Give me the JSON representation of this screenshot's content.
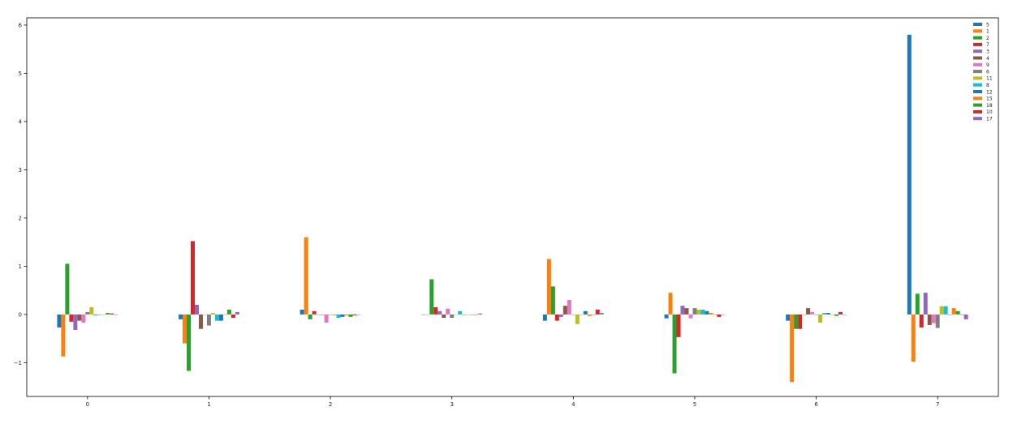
{
  "chart_data": {
    "type": "bar",
    "title": "",
    "xlabel": "",
    "ylabel": "",
    "categories": [
      "0",
      "1",
      "2",
      "3",
      "4",
      "5",
      "6",
      "7"
    ],
    "ylim": [
      -1.7,
      6.15
    ],
    "yticks": [
      -1,
      0,
      1,
      2,
      3,
      4,
      5,
      6
    ],
    "ytick_labels": [
      "−1",
      "0",
      "1",
      "2",
      "3",
      "4",
      "5",
      "6"
    ],
    "grid": false,
    "legend_position": "top-right",
    "series": [
      {
        "name": "5",
        "color": "#1f77b4",
        "values": [
          -0.27,
          -0.1,
          0.1,
          0.0,
          -0.13,
          -0.08,
          -0.13,
          5.8
        ]
      },
      {
        "name": "1",
        "color": "#ff7f0e",
        "values": [
          -0.87,
          -0.6,
          1.6,
          0.0,
          1.15,
          0.45,
          -1.4,
          -0.98
        ]
      },
      {
        "name": "2",
        "color": "#2ca02c",
        "values": [
          1.05,
          -1.17,
          -0.1,
          0.73,
          0.58,
          -1.22,
          -0.3,
          0.43
        ]
      },
      {
        "name": "7",
        "color": "#d62728",
        "values": [
          -0.15,
          1.52,
          0.07,
          0.15,
          -0.13,
          -0.47,
          -0.3,
          -0.27
        ]
      },
      {
        "name": "3",
        "color": "#9467bd",
        "values": [
          -0.32,
          0.2,
          0.0,
          0.07,
          -0.05,
          0.18,
          0.0,
          0.45
        ]
      },
      {
        "name": "4",
        "color": "#8c564b",
        "values": [
          -0.13,
          -0.3,
          0.0,
          -0.07,
          0.18,
          0.13,
          0.13,
          -0.22
        ]
      },
      {
        "name": "9",
        "color": "#e377c2",
        "values": [
          -0.17,
          0.0,
          -0.17,
          0.12,
          0.3,
          -0.08,
          0.05,
          -0.18
        ]
      },
      {
        "name": "6",
        "color": "#7f7f7f",
        "values": [
          0.05,
          -0.23,
          0.0,
          -0.07,
          0.0,
          0.13,
          0.0,
          -0.28
        ]
      },
      {
        "name": "11",
        "color": "#bcbd22",
        "values": [
          0.15,
          0.03,
          -0.02,
          0.0,
          -0.2,
          0.1,
          -0.17,
          0.17
        ]
      },
      {
        "name": "8",
        "color": "#17becf",
        "values": [
          -0.02,
          -0.13,
          -0.07,
          0.07,
          0.0,
          0.1,
          0.03,
          0.17
        ]
      },
      {
        "name": "12",
        "color": "#1f77b4",
        "values": [
          0.0,
          -0.13,
          -0.05,
          0.0,
          0.07,
          0.07,
          0.03,
          0.0
        ]
      },
      {
        "name": "15",
        "color": "#ff7f0e",
        "values": [
          0.0,
          0.0,
          -0.02,
          0.0,
          -0.03,
          0.03,
          0.0,
          0.13
        ]
      },
      {
        "name": "18",
        "color": "#2ca02c",
        "values": [
          0.03,
          0.1,
          -0.05,
          0.0,
          0.0,
          0.0,
          -0.03,
          0.07
        ]
      },
      {
        "name": "10",
        "color": "#d62728",
        "values": [
          0.02,
          -0.07,
          -0.02,
          0.0,
          0.1,
          -0.05,
          0.05,
          0.0
        ]
      },
      {
        "name": "17",
        "color": "#9467bd",
        "values": [
          0.0,
          0.05,
          0.0,
          0.02,
          0.03,
          0.0,
          0.0,
          -0.1
        ]
      }
    ]
  }
}
